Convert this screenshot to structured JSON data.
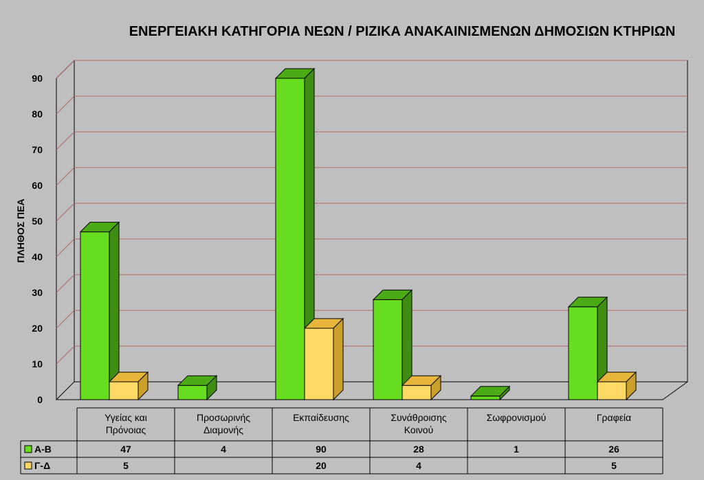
{
  "colors": {
    "background": "#bfbfbf",
    "gridline": "#b06a6a",
    "series_a_front": "#66dd1e",
    "series_a_top": "#4bab14",
    "series_a_side": "#3f8d12",
    "series_b_front": "#ffd966",
    "series_b_top": "#e6b53a",
    "series_b_side": "#caa02a"
  },
  "chart_data": {
    "type": "bar",
    "title": "ΕΝΕΡΓΕΙΑΚΗ ΚΑΤΗΓΟΡΙΑ ΝΕΩΝ / ΡΙΖΙΚΑ ΑΝΑΚΑΙΝΙΣΜΕΝΩΝ ΔΗΜΟΣΙΩΝ ΚΤΗΡΙΩΝ",
    "ylabel": "ΠΛΗΘΟΣ ΠΕΑ",
    "xlabel": "",
    "ylim": [
      0,
      90
    ],
    "yticks": [
      0,
      10,
      20,
      30,
      40,
      50,
      60,
      70,
      80,
      90
    ],
    "grid": true,
    "three_d": true,
    "categories": [
      [
        "Υγείας και",
        "Πρόνοιας"
      ],
      [
        "Προσωρινής",
        "Διαμονής"
      ],
      [
        "Εκπαίδευσης"
      ],
      [
        "Συνάθροισης",
        "Κοινού"
      ],
      [
        "Σωφρονισμού"
      ],
      [
        "Γραφεία"
      ]
    ],
    "series": [
      {
        "name": "Α-Β",
        "values": [
          47,
          4,
          90,
          28,
          1,
          26
        ]
      },
      {
        "name": "Γ-Δ",
        "values": [
          5,
          null,
          20,
          4,
          null,
          5
        ]
      }
    ],
    "data_table": true
  }
}
